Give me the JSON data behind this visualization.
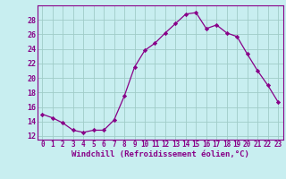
{
  "x": [
    0,
    1,
    2,
    3,
    4,
    5,
    6,
    7,
    8,
    9,
    10,
    11,
    12,
    13,
    14,
    15,
    16,
    17,
    18,
    19,
    20,
    21,
    22,
    23
  ],
  "y": [
    15.0,
    14.5,
    13.8,
    12.8,
    12.5,
    12.8,
    12.8,
    14.2,
    17.5,
    21.5,
    23.8,
    24.8,
    26.2,
    27.5,
    28.8,
    29.0,
    26.8,
    27.3,
    26.2,
    25.7,
    23.3,
    21.0,
    19.0,
    16.7
  ],
  "line_color": "#880088",
  "marker": "D",
  "marker_size": 2.2,
  "bg_color": "#c8eef0",
  "grid_color": "#a0ccc8",
  "xlabel": "Windchill (Refroidissement éolien,°C)",
  "tick_color": "#880088",
  "xlim": [
    -0.5,
    23.5
  ],
  "ylim": [
    11.5,
    30.0
  ],
  "yticks": [
    12,
    14,
    16,
    18,
    20,
    22,
    24,
    26,
    28
  ],
  "xticks": [
    0,
    1,
    2,
    3,
    4,
    5,
    6,
    7,
    8,
    9,
    10,
    11,
    12,
    13,
    14,
    15,
    16,
    17,
    18,
    19,
    20,
    21,
    22,
    23
  ],
  "xtick_fontsize": 5.5,
  "ytick_fontsize": 6.0,
  "xlabel_fontsize": 6.5
}
